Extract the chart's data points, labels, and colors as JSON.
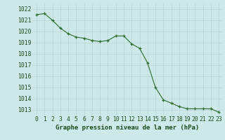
{
  "x": [
    0,
    1,
    2,
    3,
    4,
    5,
    6,
    7,
    8,
    9,
    10,
    11,
    12,
    13,
    14,
    15,
    16,
    17,
    18,
    19,
    20,
    21,
    22,
    23
  ],
  "y": [
    1021.5,
    1021.6,
    1021.0,
    1020.3,
    1019.8,
    1019.5,
    1019.4,
    1019.2,
    1019.1,
    1019.2,
    1019.6,
    1019.6,
    1018.9,
    1018.5,
    1017.2,
    1015.0,
    1013.9,
    1013.6,
    1013.3,
    1013.1,
    1013.1,
    1013.1,
    1013.1,
    1012.8
  ],
  "ylim": [
    1012.5,
    1022.5
  ],
  "yticks": [
    1013,
    1014,
    1015,
    1016,
    1017,
    1018,
    1019,
    1020,
    1021,
    1022
  ],
  "xticks": [
    0,
    1,
    2,
    3,
    4,
    5,
    6,
    7,
    8,
    9,
    10,
    11,
    12,
    13,
    14,
    15,
    16,
    17,
    18,
    19,
    20,
    21,
    22,
    23
  ],
  "xlabel": "Graphe pression niveau de la mer (hPa)",
  "line_color": "#2d6a2d",
  "marker_color": "#2d6a2d",
  "bg_color": "#cce8e8",
  "grid_color": "#b8d4d4",
  "tick_label_color": "#1a4a1a",
  "xlabel_color": "#1a4a1a",
  "xlabel_fontsize": 6.5,
  "tick_fontsize": 5.8
}
